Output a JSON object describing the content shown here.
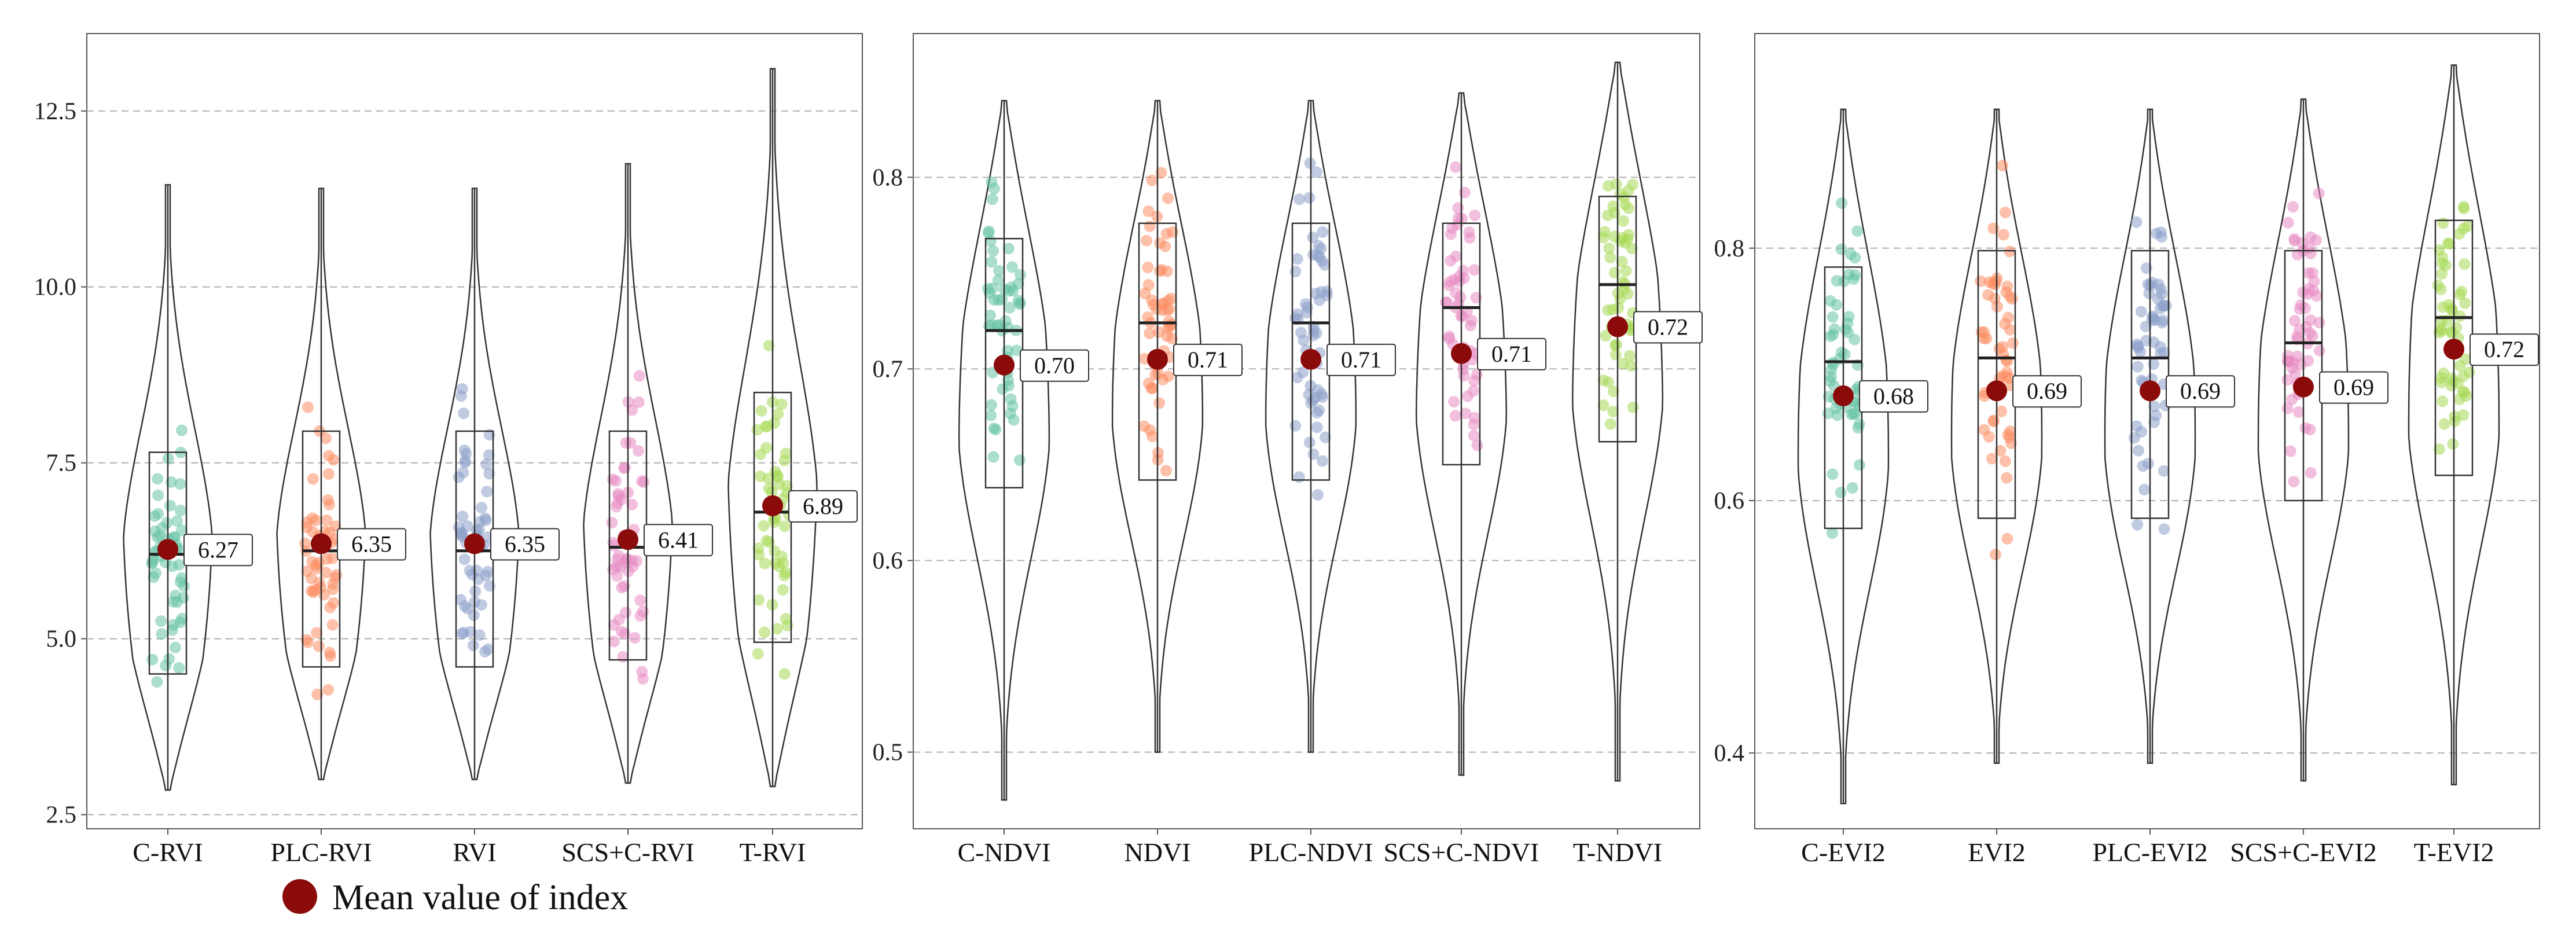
{
  "colors": {
    "mean_marker": "#8b0a0a",
    "violin_stroke": "#333333",
    "grid": "#b0b0b0",
    "teal": "#66c2a5",
    "orange": "#fc8d62",
    "lavender": "#8da0cb",
    "pink": "#e78ac3",
    "green": "#a6d854"
  },
  "legend": {
    "label": "Mean value of index",
    "marker": "filled-circle"
  },
  "chart_data": [
    {
      "type": "violin",
      "grid": "horizontal-dashed",
      "ylim": [
        2.3,
        13.6
      ],
      "yticks": [
        2.5,
        5.0,
        7.5,
        10.0,
        12.5
      ],
      "ytick_labels": [
        "2.5",
        "5.0",
        "7.5",
        "10.0",
        "12.5"
      ],
      "categories": [
        "C-RVI",
        "PLC-RVI",
        "RVI",
        "SCS+C-RVI",
        "T-RVI"
      ],
      "series": [
        {
          "color": "teal",
          "min": 2.85,
          "q1": 4.5,
          "median": 6.2,
          "q3": 7.65,
          "max": 11.45,
          "mean": 6.27,
          "mean_label": "6.27"
        },
        {
          "color": "orange",
          "min": 3.0,
          "q1": 4.6,
          "median": 6.25,
          "q3": 7.95,
          "max": 11.4,
          "mean": 6.35,
          "mean_label": "6.35"
        },
        {
          "color": "lavender",
          "min": 3.0,
          "q1": 4.6,
          "median": 6.25,
          "q3": 7.95,
          "max": 11.4,
          "mean": 6.35,
          "mean_label": "6.35"
        },
        {
          "color": "pink",
          "min": 2.95,
          "q1": 4.7,
          "median": 6.3,
          "q3": 7.95,
          "max": 11.75,
          "mean": 6.41,
          "mean_label": "6.41"
        },
        {
          "color": "green",
          "min": 2.9,
          "q1": 4.95,
          "median": 6.8,
          "q3": 8.5,
          "max": 13.1,
          "mean": 6.89,
          "mean_label": "6.89"
        }
      ]
    },
    {
      "type": "violin",
      "grid": "horizontal-dashed",
      "ylim": [
        0.46,
        0.875
      ],
      "yticks": [
        0.5,
        0.6,
        0.7,
        0.8
      ],
      "ytick_labels": [
        "0.5",
        "0.6",
        "0.7",
        "0.8"
      ],
      "categories": [
        "C-NDVI",
        "NDVI",
        "PLC-NDVI",
        "SCS+C-NDVI",
        "T-NDVI"
      ],
      "series": [
        {
          "color": "teal",
          "min": 0.475,
          "q1": 0.638,
          "median": 0.72,
          "q3": 0.768,
          "max": 0.84,
          "mean": 0.702,
          "mean_label": "0.70"
        },
        {
          "color": "orange",
          "min": 0.5,
          "q1": 0.642,
          "median": 0.724,
          "q3": 0.776,
          "max": 0.84,
          "mean": 0.705,
          "mean_label": "0.71"
        },
        {
          "color": "lavender",
          "min": 0.5,
          "q1": 0.642,
          "median": 0.724,
          "q3": 0.776,
          "max": 0.84,
          "mean": 0.705,
          "mean_label": "0.71"
        },
        {
          "color": "pink",
          "min": 0.488,
          "q1": 0.65,
          "median": 0.732,
          "q3": 0.776,
          "max": 0.844,
          "mean": 0.708,
          "mean_label": "0.71"
        },
        {
          "color": "green",
          "min": 0.485,
          "q1": 0.662,
          "median": 0.744,
          "q3": 0.79,
          "max": 0.86,
          "mean": 0.722,
          "mean_label": "0.72"
        }
      ]
    },
    {
      "type": "violin",
      "grid": "horizontal-dashed",
      "ylim": [
        0.34,
        0.97
      ],
      "yticks": [
        0.4,
        0.6,
        0.8
      ],
      "ytick_labels": [
        "0.4",
        "0.6",
        "0.8"
      ],
      "categories": [
        "C-EVI2",
        "EVI2",
        "PLC-EVI2",
        "SCS+C-EVI2",
        "T-EVI2"
      ],
      "series": [
        {
          "color": "teal",
          "min": 0.36,
          "q1": 0.578,
          "median": 0.71,
          "q3": 0.785,
          "max": 0.91,
          "mean": 0.683,
          "mean_label": "0.68"
        },
        {
          "color": "orange",
          "min": 0.392,
          "q1": 0.586,
          "median": 0.713,
          "q3": 0.798,
          "max": 0.91,
          "mean": 0.687,
          "mean_label": "0.69"
        },
        {
          "color": "lavender",
          "min": 0.392,
          "q1": 0.586,
          "median": 0.713,
          "q3": 0.798,
          "max": 0.91,
          "mean": 0.687,
          "mean_label": "0.69"
        },
        {
          "color": "pink",
          "min": 0.378,
          "q1": 0.6,
          "median": 0.725,
          "q3": 0.798,
          "max": 0.918,
          "mean": 0.69,
          "mean_label": "0.69"
        },
        {
          "color": "green",
          "min": 0.375,
          "q1": 0.62,
          "median": 0.745,
          "q3": 0.822,
          "max": 0.945,
          "mean": 0.72,
          "mean_label": "0.72"
        }
      ]
    }
  ]
}
